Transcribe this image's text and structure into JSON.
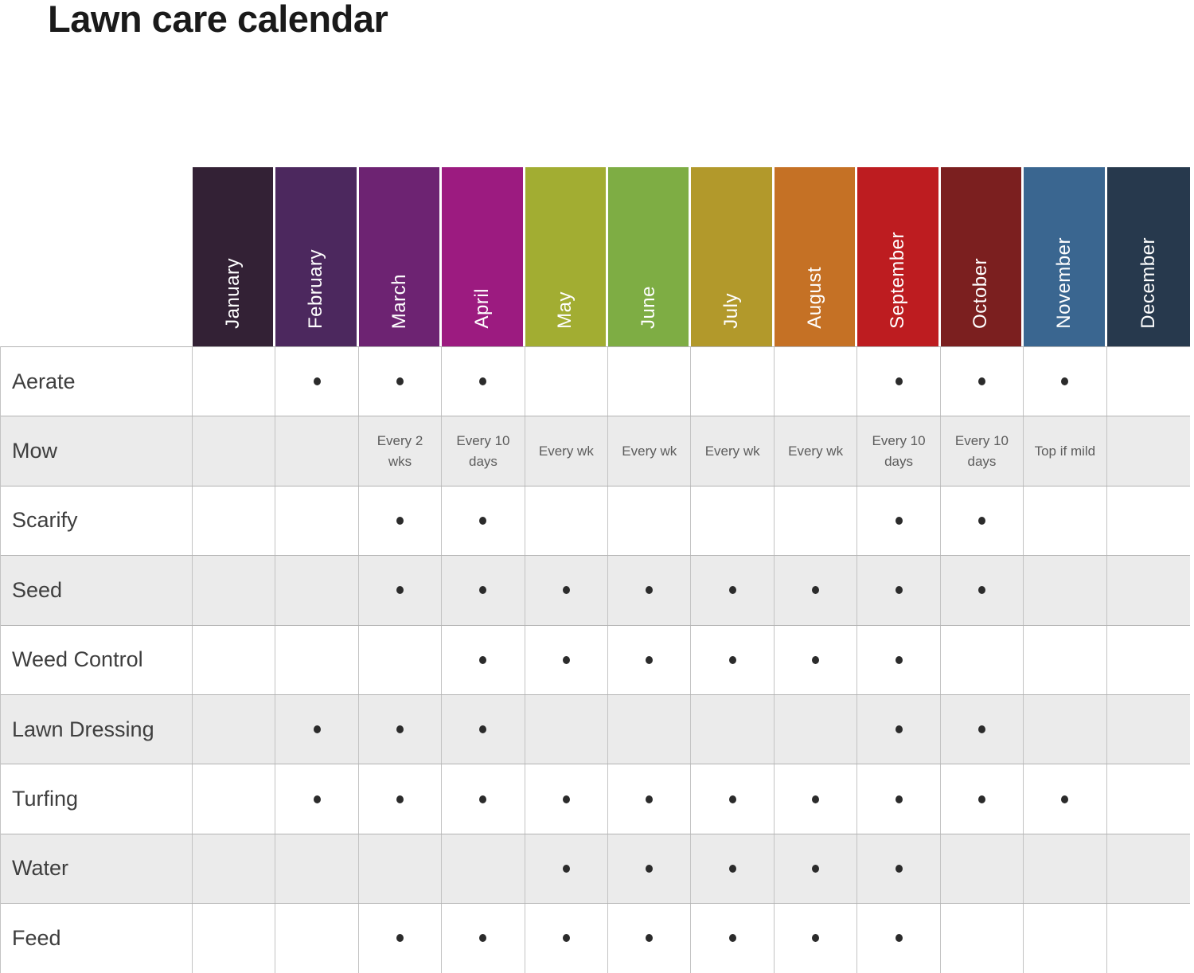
{
  "title": "Lawn care calendar",
  "chart_data": {
    "type": "table",
    "title": "Lawn care calendar",
    "marker": "•",
    "columns": [
      {
        "name": "January",
        "color": "#332135"
      },
      {
        "name": "February",
        "color": "#4c285e"
      },
      {
        "name": "March",
        "color": "#6d2372"
      },
      {
        "name": "April",
        "color": "#9c1b80"
      },
      {
        "name": "May",
        "color": "#a2ad32"
      },
      {
        "name": "June",
        "color": "#7ead44"
      },
      {
        "name": "July",
        "color": "#b2992b"
      },
      {
        "name": "August",
        "color": "#c57125"
      },
      {
        "name": "September",
        "color": "#bd1c20"
      },
      {
        "name": "October",
        "color": "#7b1f1f"
      },
      {
        "name": "November",
        "color": "#3a6690"
      },
      {
        "name": "December",
        "color": "#27394d"
      }
    ],
    "rows": [
      {
        "label": "Aerate",
        "cells": [
          "",
          "•",
          "•",
          "•",
          "",
          "",
          "",
          "",
          "•",
          "•",
          "•",
          ""
        ]
      },
      {
        "label": "Mow",
        "cells": [
          "",
          "",
          "Every 2 wks",
          "Every 10 days",
          "Every wk",
          "Every wk",
          "Every wk",
          "Every wk",
          "Every 10 days",
          "Every 10 days",
          "Top if mild",
          ""
        ]
      },
      {
        "label": "Scarify",
        "cells": [
          "",
          "",
          "•",
          "•",
          "",
          "",
          "",
          "",
          "•",
          "•",
          "",
          ""
        ]
      },
      {
        "label": "Seed",
        "cells": [
          "",
          "",
          "•",
          "•",
          "•",
          "•",
          "•",
          "•",
          "•",
          "•",
          "",
          ""
        ]
      },
      {
        "label": "Weed Control",
        "cells": [
          "",
          "",
          "",
          "•",
          "•",
          "•",
          "•",
          "•",
          "•",
          "",
          "",
          ""
        ]
      },
      {
        "label": "Lawn Dressing",
        "cells": [
          "",
          "•",
          "•",
          "•",
          "",
          "",
          "",
          "",
          "•",
          "•",
          "",
          ""
        ]
      },
      {
        "label": "Turfing",
        "cells": [
          "",
          "•",
          "•",
          "•",
          "•",
          "•",
          "•",
          "•",
          "•",
          "•",
          "•",
          ""
        ]
      },
      {
        "label": "Water",
        "cells": [
          "",
          "",
          "",
          "",
          "•",
          "•",
          "•",
          "•",
          "•",
          "",
          "",
          ""
        ]
      },
      {
        "label": "Feed",
        "cells": [
          "",
          "",
          "•",
          "•",
          "•",
          "•",
          "•",
          "•",
          "•",
          "",
          "",
          ""
        ]
      }
    ]
  }
}
